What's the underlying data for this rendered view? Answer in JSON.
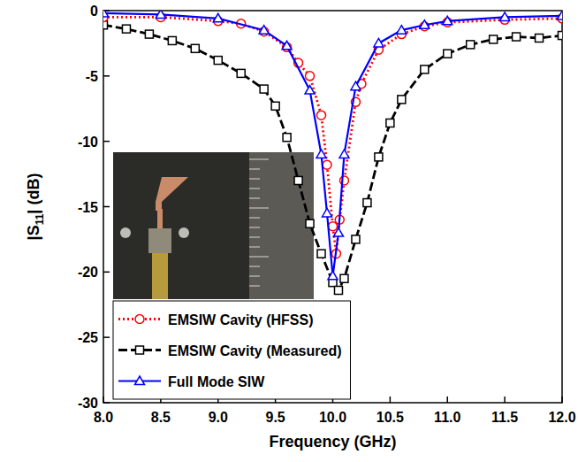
{
  "chart_data": {
    "type": "line",
    "x_label": "Frequency (GHz)",
    "y_label": "|S11| (dB)",
    "xlim": [
      8,
      12
    ],
    "ylim": [
      -30,
      0
    ],
    "xticks": [
      {
        "value": 8,
        "label": "8.0"
      },
      {
        "value": 8.5,
        "label": "8.5"
      },
      {
        "value": 9,
        "label": "9.0"
      },
      {
        "value": 9.5,
        "label": "9.5"
      },
      {
        "value": 10,
        "label": "10.0"
      },
      {
        "value": 10.5,
        "label": "10.5"
      },
      {
        "value": 11,
        "label": "11.0"
      },
      {
        "value": 11.5,
        "label": "11.5"
      },
      {
        "value": 12,
        "label": "12.0"
      }
    ],
    "yticks": [
      0,
      -5,
      -10,
      -15,
      -20,
      -25,
      -30
    ],
    "grid": false,
    "legend": "lower left",
    "series": [
      {
        "name": "EMSIW Cavity (HFSS)",
        "color": "#ff0000",
        "marker": "circle",
        "line_style": "dotted",
        "x": [
          8.0,
          8.5,
          9.0,
          9.2,
          9.4,
          9.6,
          9.7,
          9.8,
          9.9,
          9.95,
          10.0,
          10.03,
          10.06,
          10.1,
          10.2,
          10.25,
          10.4,
          10.6,
          10.8,
          11.0,
          11.5,
          12.0
        ],
        "values": [
          -0.5,
          -0.5,
          -0.8,
          -1.0,
          -1.6,
          -2.8,
          -4.0,
          -5.0,
          -8.0,
          -11.8,
          -16.5,
          -18.6,
          -16.0,
          -13.0,
          -7.0,
          -5.6,
          -3.0,
          -1.8,
          -1.2,
          -0.9,
          -0.7,
          -0.6
        ]
      },
      {
        "name": "EMSIW Cavity (Measured)",
        "color": "#000000",
        "marker": "square",
        "line_style": "dashed",
        "x": [
          8.0,
          8.2,
          8.4,
          8.6,
          8.8,
          9.0,
          9.2,
          9.4,
          9.5,
          9.6,
          9.7,
          9.8,
          9.9,
          10.0,
          10.05,
          10.1,
          10.2,
          10.3,
          10.4,
          10.5,
          10.6,
          10.8,
          11.0,
          11.2,
          11.4,
          11.6,
          11.8,
          12.0
        ],
        "values": [
          -1.1,
          -1.4,
          -1.8,
          -2.3,
          -2.9,
          -3.8,
          -4.8,
          -6.0,
          -7.3,
          -9.7,
          -13.0,
          -16.3,
          -18.6,
          -20.8,
          -21.4,
          -20.5,
          -17.5,
          -14.7,
          -11.2,
          -8.6,
          -6.8,
          -4.5,
          -3.3,
          -2.6,
          -2.2,
          -2.0,
          -2.1,
          -1.9
        ]
      },
      {
        "name": "Full Mode SIW",
        "color": "#0000ff",
        "marker": "triangle",
        "line_style": "solid",
        "x": [
          8.0,
          8.5,
          9.0,
          9.4,
          9.6,
          9.8,
          9.9,
          9.95,
          10.0,
          10.05,
          10.1,
          10.2,
          10.4,
          10.6,
          10.8,
          11.0,
          11.5,
          12.0
        ],
        "values": [
          -0.2,
          -0.3,
          -0.6,
          -1.5,
          -2.7,
          -6.1,
          -11.0,
          -15.5,
          -20.3,
          -17.0,
          -11.0,
          -5.8,
          -2.5,
          -1.5,
          -1.1,
          -0.8,
          -0.5,
          -0.4
        ]
      }
    ]
  }
}
